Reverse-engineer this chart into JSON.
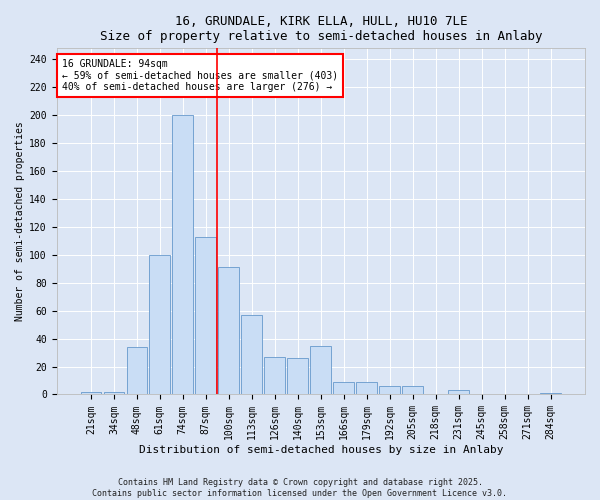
{
  "title_line1": "16, GRUNDALE, KIRK ELLA, HULL, HU10 7LE",
  "title_line2": "Size of property relative to semi-detached houses in Anlaby",
  "xlabel": "Distribution of semi-detached houses by size in Anlaby",
  "ylabel": "Number of semi-detached properties",
  "categories": [
    "21sqm",
    "34sqm",
    "48sqm",
    "61sqm",
    "74sqm",
    "87sqm",
    "100sqm",
    "113sqm",
    "126sqm",
    "140sqm",
    "153sqm",
    "166sqm",
    "179sqm",
    "192sqm",
    "205sqm",
    "218sqm",
    "231sqm",
    "245sqm",
    "258sqm",
    "271sqm",
    "284sqm"
  ],
  "values": [
    2,
    2,
    34,
    100,
    200,
    113,
    91,
    57,
    27,
    26,
    35,
    9,
    9,
    6,
    6,
    0,
    3,
    0,
    0,
    0,
    1
  ],
  "bar_color": "#c9ddf5",
  "bar_edge_color": "#6699cc",
  "vline_x_index": 6,
  "vline_color": "red",
  "annotation_text": "16 GRUNDALE: 94sqm\n← 59% of semi-detached houses are smaller (403)\n40% of semi-detached houses are larger (276) →",
  "annotation_box_color": "white",
  "annotation_box_edge_color": "red",
  "ylim": [
    0,
    248
  ],
  "yticks": [
    0,
    20,
    40,
    60,
    80,
    100,
    120,
    140,
    160,
    180,
    200,
    220,
    240
  ],
  "footer_line1": "Contains HM Land Registry data © Crown copyright and database right 2025.",
  "footer_line2": "Contains public sector information licensed under the Open Government Licence v3.0.",
  "bg_color": "#dce6f5",
  "plot_bg_color": "#dce6f5",
  "title_fontsize": 9,
  "xlabel_fontsize": 8,
  "ylabel_fontsize": 7,
  "tick_fontsize": 7,
  "annotation_fontsize": 7,
  "footer_fontsize": 6
}
